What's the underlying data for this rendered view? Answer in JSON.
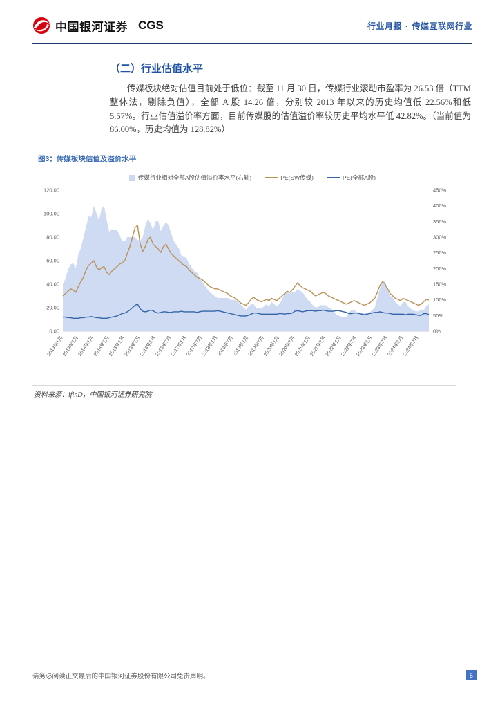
{
  "header": {
    "brand": {
      "name_cn": "中国银河证券",
      "name_en": "CGS"
    },
    "report_type": "行业月报",
    "separator": "·",
    "industry": "传媒互联网行业"
  },
  "section": {
    "title": "（二）行业估值水平",
    "paragraph": "传媒板块绝对估值目前处于低位：截至 11 月 30 日，传媒行业滚动市盈率为 26.53 倍（TTM 整体法，剔除负值），全部 A 股 14.26 倍，分别较 2013 年以来的历史均值低 22.56%和低 5.57%。行业估值溢价率方面，目前传媒股的估值溢价率较历史平均水平低 42.82%。（当前值为 86.00%，历史均值为 128.82%）"
  },
  "figure": {
    "caption": "图3：传媒板块估值及溢价水平",
    "source": "资料来源：ifinD，中国银河证券研究院"
  },
  "colors": {
    "brand_red": "#d7000f",
    "accent_blue": "#2456a4",
    "header_rule": "#1d3a6b",
    "page_number_bg": "#4472c4"
  },
  "chart_data": {
    "type": "line",
    "title": "传媒板块估值及溢价水平",
    "x_start": "2013年1月",
    "x_end": "2024年11月",
    "x_tick_labels": [
      "2013年1月",
      "2013年7月",
      "2014年1月",
      "2014年7月",
      "2015年1月",
      "2015年7月",
      "2016年1月",
      "2016年7月",
      "2017年1月",
      "2017年7月",
      "2018年1月",
      "2018年7月",
      "2019年1月",
      "2019年7月",
      "2020年1月",
      "2020年7月",
      "2021年1月",
      "2021年7月",
      "2022年1月",
      "2022年7月",
      "2023年1月",
      "2023年7月",
      "2024年1月",
      "2024年7月"
    ],
    "left_axis": {
      "min": 0,
      "max": 120,
      "ticks": [
        "0.00",
        "20.00",
        "40.00",
        "60.00",
        "80.00",
        "100.00",
        "120.00"
      ]
    },
    "right_axis": {
      "min": 0,
      "max": 450,
      "ticks": [
        "0%",
        "50%",
        "100%",
        "150%",
        "200%",
        "250%",
        "300%",
        "350%",
        "400%",
        "450%"
      ]
    },
    "legend_position": "top",
    "grid": false,
    "series": [
      {
        "name": "传媒行业相对全部A股估值溢价率水平(右轴)",
        "type": "area",
        "axis": "right",
        "color": "#ccd9f2",
        "values": [
          150,
          167,
          196,
          213,
          218,
          200,
          245,
          265,
          300,
          333,
          367,
          364,
          400,
          378,
          352,
          391,
          400,
          355,
          317,
          325,
          324,
          323,
          307,
          287,
          287,
          300,
          300,
          300,
          300,
          291,
          289,
          300,
          336,
          359,
          344,
          323,
          350,
          352,
          319,
          336,
          348,
          338,
          313,
          288,
          276,
          264,
          241,
          239,
          233,
          215,
          203,
          191,
          188,
          173,
          159,
          147,
          135,
          124,
          118,
          112,
          106,
          106,
          106,
          106,
          106,
          100,
          100,
          100,
          93,
          85,
          77,
          69,
          78,
          86,
          87,
          74,
          73,
          72,
          79,
          86,
          79,
          93,
          86,
          79,
          87,
          100,
          121,
          127,
          120,
          126,
          124,
          134,
          129,
          124,
          112,
          100,
          94,
          83,
          76,
          77,
          83,
          83,
          83,
          76,
          71,
          65,
          54,
          49,
          47,
          45,
          44,
          60,
          67,
          68,
          61,
          60,
          59,
          57,
          59,
          60,
          68,
          75,
          106,
          136,
          163,
          158,
          132,
          113,
          107,
          93,
          86,
          79,
          93,
          93,
          79,
          72,
          66,
          64,
          63,
          70,
          67,
          80,
          86
        ]
      },
      {
        "name": "PE(SW传媒)",
        "type": "line",
        "axis": "left",
        "color": "#b99156",
        "values": [
          30,
          32,
          34,
          36,
          35,
          33,
          38,
          42,
          46,
          52,
          56,
          58,
          60,
          55,
          52,
          54,
          55,
          50,
          48,
          51,
          53,
          55,
          57,
          58,
          60,
          66,
          72,
          80,
          88,
          90,
          74,
          68,
          72,
          78,
          80,
          74,
          72,
          70,
          67,
          72,
          74,
          70,
          66,
          64,
          62,
          60,
          58,
          56,
          55,
          52,
          50,
          48,
          46,
          45,
          44,
          42,
          40,
          38,
          37,
          36,
          36,
          35,
          34,
          33,
          32,
          30,
          29,
          28,
          26,
          24,
          23,
          22,
          24,
          27,
          29,
          27,
          26,
          25,
          26,
          27,
          26,
          28,
          27,
          26,
          28,
          30,
          32,
          34,
          33,
          35,
          38,
          41,
          39,
          37,
          36,
          35,
          34,
          32,
          30,
          31,
          32,
          33,
          32,
          30,
          29,
          28,
          27,
          26,
          25,
          24,
          23,
          24,
          25,
          26,
          25,
          24,
          23,
          22,
          23,
          24,
          26,
          28,
          33,
          39,
          42,
          40,
          36,
          32,
          30,
          28,
          27,
          26,
          28,
          27,
          26,
          25,
          24,
          23,
          22,
          23,
          25,
          27,
          26.53
        ]
      },
      {
        "name": "PE(全部A股)",
        "type": "line",
        "axis": "left",
        "color": "#3465a8",
        "values": [
          12,
          12,
          11.5,
          11.5,
          11,
          11,
          11,
          11.5,
          11.5,
          12,
          12,
          12.5,
          12,
          11.5,
          11.5,
          11,
          11,
          11,
          11.5,
          12,
          12.5,
          13,
          14,
          15,
          15.5,
          16.5,
          18,
          20,
          22,
          23,
          19,
          17,
          16.5,
          17,
          18,
          17.5,
          16,
          15.5,
          16,
          16.5,
          16.5,
          16,
          16,
          16.5,
          16.5,
          16.5,
          17,
          16.5,
          16.5,
          16.5,
          16.5,
          16.5,
          16,
          16.5,
          17,
          17,
          17,
          17,
          17,
          17,
          17.5,
          17,
          16.5,
          16,
          15.5,
          15,
          14.5,
          14,
          13.5,
          13,
          13,
          13,
          13.5,
          14.5,
          15.5,
          15.5,
          15,
          14.5,
          14.5,
          14.5,
          14.5,
          14.5,
          14.5,
          14.5,
          15,
          15,
          14.5,
          15,
          15,
          15.5,
          17,
          17.5,
          17,
          16.5,
          17,
          17.5,
          17.5,
          17.5,
          17,
          17.5,
          17.5,
          18,
          17.5,
          17,
          17,
          17,
          17.5,
          17.5,
          17,
          16.5,
          16,
          15,
          15,
          15.5,
          15.5,
          15,
          14.5,
          14,
          14.5,
          15,
          15.5,
          16,
          16,
          16.5,
          16,
          15.5,
          15.5,
          15,
          14.5,
          14.5,
          14.5,
          14.5,
          14.5,
          14,
          14.5,
          14.5,
          14.5,
          14,
          13.5,
          13.5,
          15,
          15,
          14.26
        ]
      }
    ],
    "key_values": {
      "pe_media_current": 26.53,
      "pe_all_a_current": 14.26,
      "premium_current_pct": 86.0,
      "premium_hist_avg_pct": 128.82
    }
  },
  "footer": {
    "disclaimer": "请务必阅读正文最后的中国银河证券股份有限公司免责声明。",
    "page_number": "5"
  }
}
